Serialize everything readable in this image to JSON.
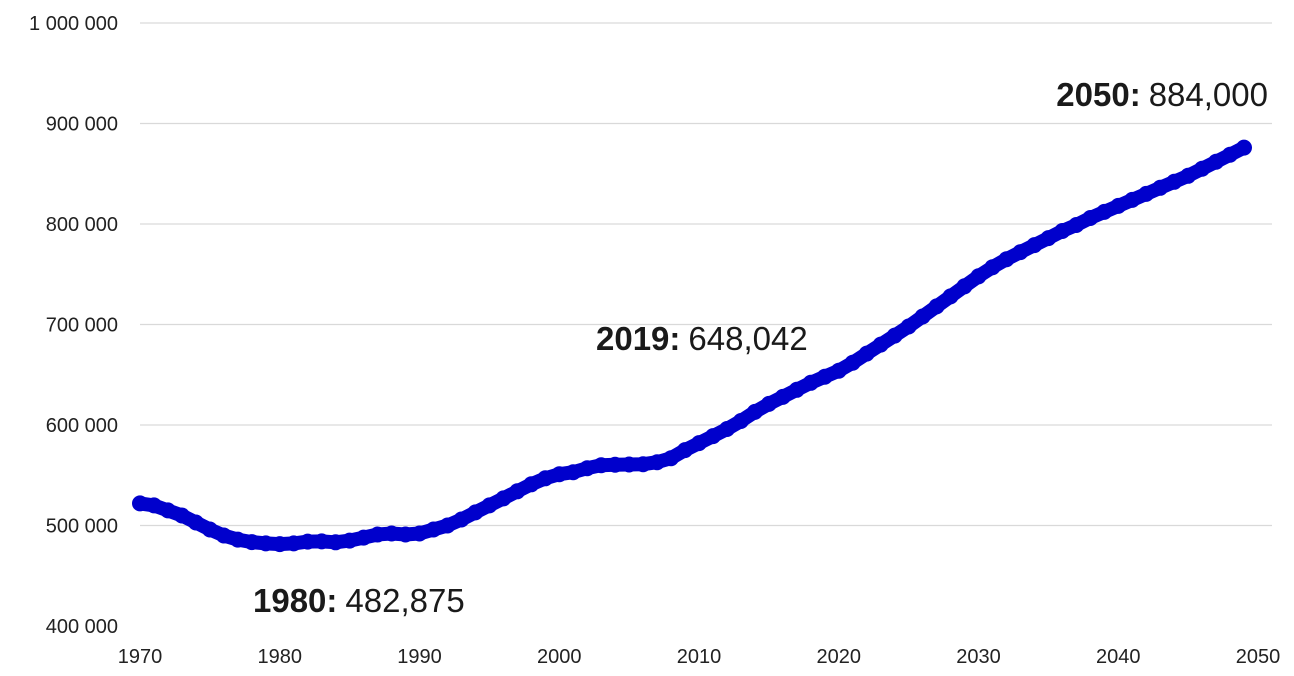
{
  "chart_data": {
    "type": "line",
    "title": "",
    "xlabel": "",
    "ylabel": "",
    "xlim": [
      1970,
      2050
    ],
    "ylim": [
      400000,
      1000000
    ],
    "grid": true,
    "line_color": "#0000cc",
    "x_ticks": [
      1970,
      1980,
      1990,
      2000,
      2010,
      2020,
      2030,
      2040,
      2050
    ],
    "x_tick_labels": [
      "1970",
      "1980",
      "1990",
      "2000",
      "2010",
      "2020",
      "2030",
      "2040",
      "2050"
    ],
    "y_ticks": [
      400000,
      500000,
      600000,
      700000,
      800000,
      900000,
      1000000
    ],
    "y_tick_labels": [
      "400 000",
      "500 000",
      "600 000",
      "700 000",
      "800 000",
      "900 000",
      "1 000 000"
    ],
    "series": [
      {
        "x": [
          1970,
          1971,
          1972,
          1973,
          1974,
          1975,
          1976,
          1977,
          1978,
          1979,
          1980,
          1981,
          1982,
          1983,
          1984,
          1985,
          1986,
          1987,
          1988,
          1989,
          1990,
          1991,
          1992,
          1993,
          1994,
          1995,
          1996,
          1997,
          1998,
          1999,
          2000,
          2001,
          2002,
          2003,
          2004,
          2005,
          2006,
          2007,
          2008,
          2009,
          2010,
          2011,
          2012,
          2013,
          2014,
          2015,
          2016,
          2017,
          2018,
          2019,
          2020,
          2021,
          2022,
          2023,
          2024,
          2025,
          2026,
          2027,
          2028,
          2029,
          2030,
          2031,
          2032,
          2033,
          2034,
          2035,
          2036,
          2037,
          2038,
          2039,
          2040,
          2041,
          2042,
          2043,
          2044,
          2045,
          2046,
          2047,
          2048,
          2049
        ],
        "values": [
          522000,
          520000,
          515000,
          510000,
          503000,
          496000,
          490000,
          486000,
          483500,
          482200,
          481500,
          482200,
          484000,
          484200,
          483300,
          485000,
          488000,
          491000,
          492000,
          491000,
          492000,
          496000,
          500000,
          506000,
          513000,
          520000,
          527000,
          534000,
          541000,
          547000,
          551000,
          553000,
          557000,
          560000,
          560500,
          560700,
          561000,
          563000,
          567000,
          575000,
          582000,
          589000,
          596000,
          604000,
          613000,
          621000,
          628000,
          635000,
          642000,
          648042,
          654000,
          662000,
          671000,
          680000,
          689000,
          698000,
          708000,
          718000,
          728000,
          738000,
          748000,
          757000,
          765000,
          772000,
          779000,
          786000,
          793000,
          799000,
          806000,
          812000,
          818000,
          824000,
          830000,
          836000,
          842000,
          848000,
          855000,
          862000,
          869000,
          876000
        ]
      }
    ],
    "annotations": [
      {
        "x": 1980,
        "year": "1980:",
        "value": "482,875"
      },
      {
        "x": 2019,
        "year": "2019:",
        "value": "648,042"
      },
      {
        "x": 2050,
        "year": "2050:",
        "value": "884,000"
      }
    ]
  }
}
